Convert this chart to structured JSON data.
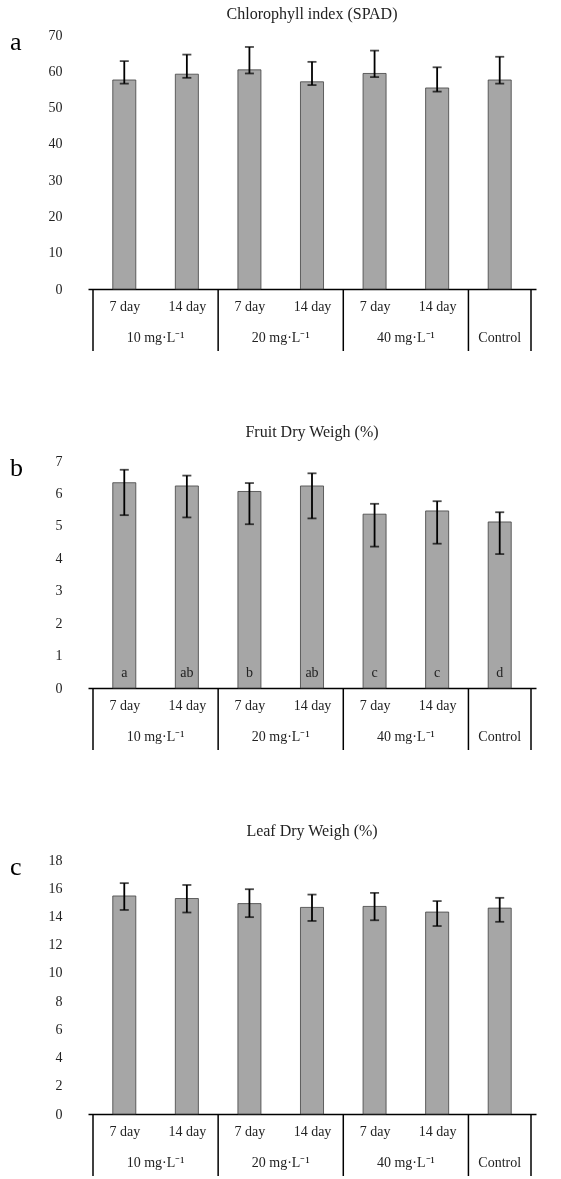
{
  "chart_data": [
    {
      "type": "bar",
      "title": "Chlorophyll index  (SPAD)",
      "categories": [
        "7 day",
        "14 day",
        "7 day",
        "14 day",
        "7 day",
        "14 day",
        null
      ],
      "values": [
        57.6,
        59.2,
        60.4,
        57.1,
        59.4,
        55.4,
        57.6
      ],
      "errors": [
        [
          56.6,
          62.8
        ],
        [
          58.2,
          64.6
        ],
        [
          59.4,
          66.7
        ],
        [
          56.2,
          62.6
        ],
        [
          58.4,
          65.7
        ],
        [
          54.4,
          61.1
        ],
        [
          56.6,
          64.0
        ]
      ],
      "color": "#a6a6a6",
      "ylim": [
        0,
        70
      ],
      "yticks": [
        0,
        10,
        20,
        30,
        40,
        50,
        60,
        70
      ],
      "annotations": [
        "a",
        "10 mg·L⁻¹",
        "20 mg·L⁻¹",
        "40 mg·L⁻¹",
        "Control"
      ]
    },
    {
      "type": "bar",
      "title": "Fruit Dry Weigh  (%)",
      "categories": [
        "7 day",
        "14 day",
        "7 day",
        "14 day",
        "7 day",
        "14 day",
        null
      ],
      "values": [
        6.33,
        6.23,
        6.06,
        6.23,
        5.36,
        5.46,
        5.12
      ],
      "errors": [
        [
          5.33,
          6.73
        ],
        [
          5.26,
          6.55
        ],
        [
          5.05,
          6.32
        ],
        [
          5.23,
          6.62
        ],
        [
          4.36,
          5.68
        ],
        [
          4.45,
          5.76
        ],
        [
          4.13,
          5.42
        ]
      ],
      "color": "#a6a6a6",
      "ylim": [
        0,
        7
      ],
      "yticks": [
        0,
        1,
        2,
        3,
        4,
        5,
        6,
        7
      ],
      "annotations": [
        "b",
        "10 mg·L⁻¹",
        "20 mg·L⁻¹",
        "40 mg·L⁻¹",
        "Control",
        {
          "text": "a",
          "y": 0
        },
        {
          "text": "ab",
          "y": 0
        },
        {
          "text": "b",
          "y": 0
        },
        {
          "text": "ab",
          "y": 0
        },
        {
          "text": "c",
          "y": 0
        },
        {
          "text": "c",
          "y": 0
        },
        {
          "text": "d",
          "y": 0
        }
      ]
    },
    {
      "type": "bar",
      "title": "Leaf Dry Weigh  (%)",
      "categories": [
        "7 day",
        "14 day",
        "7 day",
        "14 day",
        "7 day",
        "14 day",
        null
      ],
      "values": [
        15.45,
        15.27,
        14.91,
        14.64,
        14.71,
        14.31,
        14.59
      ],
      "errors": [
        [
          14.46,
          16.36
        ],
        [
          14.28,
          16.23
        ],
        [
          13.95,
          15.93
        ],
        [
          13.68,
          15.55
        ],
        [
          13.73,
          15.67
        ],
        [
          13.32,
          15.09
        ],
        [
          13.62,
          15.32
        ]
      ],
      "color": "#a6a6a6",
      "ylim": [
        0,
        18
      ],
      "yticks": [
        0,
        2,
        4,
        6,
        8,
        10,
        12,
        14,
        16,
        18
      ],
      "annotations": [
        "c",
        "10 mg·L⁻¹",
        "20 mg·L⁻¹",
        "40 mg·L⁻¹",
        "Control"
      ]
    }
  ]
}
